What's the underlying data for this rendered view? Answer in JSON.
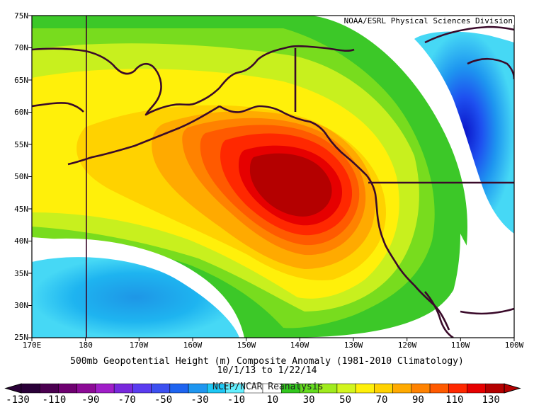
{
  "credit": "NOAA/ESRL Physical Sciences Division",
  "title_line1": "500mb Geopotential Height (m) Composite Anomaly (1981-2010 Climatology)",
  "title_line2": "10/1/13  to 1/22/14",
  "reanalysis_label": "NCEP/NCAR Reanalysis",
  "lat_labels": [
    "75N",
    "70N",
    "65N",
    "60N",
    "55N",
    "50N",
    "45N",
    "40N",
    "35N",
    "30N",
    "25N"
  ],
  "lon_labels": [
    "170E",
    "180",
    "170W",
    "160W",
    "150W",
    "140W",
    "130W",
    "120W",
    "110W",
    "100W"
  ],
  "colorbar": {
    "tick_labels": [
      "-130",
      "-110",
      "-90",
      "-70",
      "-50",
      "-30",
      "-10",
      "10",
      "30",
      "50",
      "70",
      "90",
      "110",
      "130"
    ],
    "colors": [
      "#2a0038",
      "#4b0050",
      "#6e0070",
      "#8c0a96",
      "#a01ec8",
      "#7828dc",
      "#5a3cf0",
      "#3c50f0",
      "#1e64f0",
      "#1e96f0",
      "#1ec8f5",
      "#64f0ff",
      "#ffffff",
      "#ffffff",
      "#32c81e",
      "#64dc1e",
      "#a0eb1e",
      "#d2f51e",
      "#fff00a",
      "#ffd200",
      "#ffaa00",
      "#ff8200",
      "#ff5a00",
      "#ff2800",
      "#e60000",
      "#b40000"
    ]
  },
  "map": {
    "lat_range": [
      25,
      75
    ],
    "lon_range": [
      "170E",
      "100W"
    ],
    "anomaly_max_center": {
      "lat": 50,
      "lon": "145W"
    },
    "anomaly_min_centers": [
      {
        "lat": 55,
        "lon": "100W"
      },
      {
        "lat": 32,
        "lon": "176W"
      }
    ]
  }
}
